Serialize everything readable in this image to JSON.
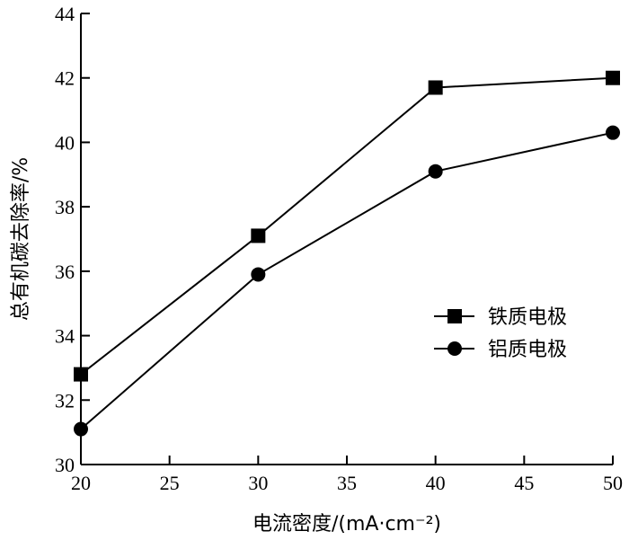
{
  "chart_data": {
    "type": "line",
    "title": "",
    "xlabel": "电流密度/(mA·cm⁻²)",
    "ylabel": "总有机碳去除率/%",
    "xlim": [
      20,
      50
    ],
    "ylim": [
      30,
      44
    ],
    "xticks": [
      20,
      25,
      30,
      35,
      40,
      45,
      50
    ],
    "yticks": [
      30,
      32,
      34,
      36,
      38,
      40,
      42,
      44
    ],
    "x": [
      20,
      30,
      40,
      50
    ],
    "series": [
      {
        "name": "铁质电极",
        "marker": "square",
        "values": [
          32.8,
          37.1,
          41.7,
          42.0
        ]
      },
      {
        "name": "铝质电极",
        "marker": "circle",
        "values": [
          31.1,
          35.9,
          39.1,
          40.3
        ]
      }
    ],
    "grid": false,
    "legend_position": "right"
  }
}
